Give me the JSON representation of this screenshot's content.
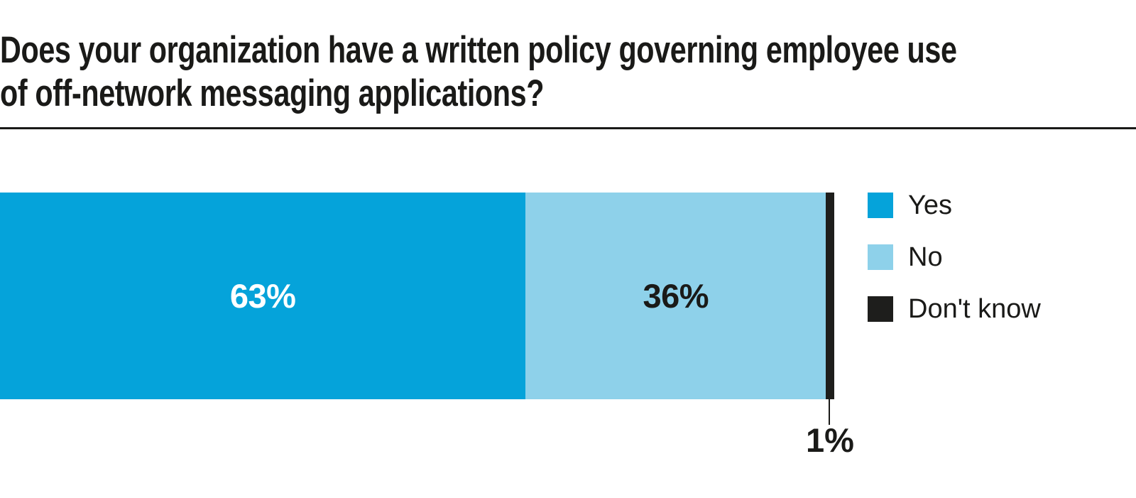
{
  "header": {
    "title_line1": "Does your organization have a written policy governing employee use",
    "title_line2": "of off-network messaging applications?"
  },
  "chart_data": {
    "type": "bar",
    "orientation": "horizontal-stacked",
    "title": "Does your organization have a written policy governing employee use of off-network messaging applications?",
    "categories": [
      "Yes",
      "No",
      "Don't know"
    ],
    "values": [
      63,
      36,
      1
    ],
    "labels": [
      "63%",
      "36%",
      "1%"
    ],
    "colors": [
      "#05a3da",
      "#8ed1ea",
      "#1e1e1c"
    ],
    "xlim": [
      0,
      100
    ],
    "grid": false,
    "legend_position": "right",
    "background": "#ffffff",
    "text_color": "#1a1a18",
    "inside_label_color_yes": "#ffffff",
    "inside_label_color_no": "#1a1a18"
  },
  "legend": {
    "items": [
      {
        "label": "Yes",
        "color": "#05a3da"
      },
      {
        "label": "No",
        "color": "#8ed1ea"
      },
      {
        "label": "Don't know",
        "color": "#1e1e1c"
      }
    ]
  }
}
